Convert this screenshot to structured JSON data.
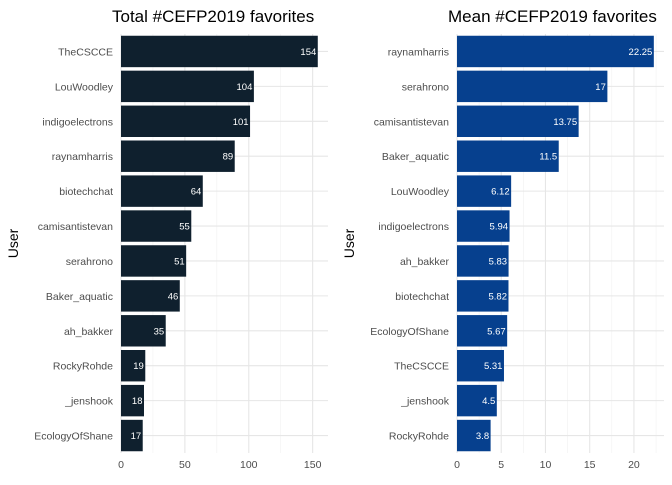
{
  "chart_data": [
    {
      "type": "bar",
      "orientation": "horizontal",
      "title": "Total #CEFP2019 favorites",
      "xlabel": "",
      "ylabel": "User",
      "categories": [
        "TheCSCCE",
        "LouWoodley",
        "indigoelectrons",
        "raynamharris",
        "biotechchat",
        "camisantistevan",
        "serahrono",
        "Baker_aquatic",
        "ah_bakker",
        "RockyRohde",
        "_jenshook",
        "EcologyOfShane"
      ],
      "values": [
        154,
        104,
        101,
        89,
        64,
        55,
        51,
        46,
        35,
        19,
        18,
        17
      ],
      "value_labels": [
        "154",
        "104",
        "101",
        "89",
        "64",
        "55",
        "51",
        "46",
        "35",
        "19",
        "18",
        "17"
      ],
      "xlim": [
        0,
        162
      ],
      "xticks": [
        0,
        50,
        100,
        150
      ],
      "xtick_labels": [
        "0",
        "50",
        "100",
        "150"
      ],
      "grid": true,
      "bar_color": "#0f202e"
    },
    {
      "type": "bar",
      "orientation": "horizontal",
      "title": "Mean #CEFP2019 favorites",
      "xlabel": "",
      "ylabel": "User",
      "categories": [
        "raynamharris",
        "serahrono",
        "camisantistevan",
        "Baker_aquatic",
        "LouWoodley",
        "indigoelectrons",
        "ah_bakker",
        "biotechchat",
        "EcologyOfShane",
        "TheCSCCE",
        "_jenshook",
        "RockyRohde"
      ],
      "values": [
        22.25,
        17,
        13.75,
        11.5,
        6.12,
        5.94,
        5.83,
        5.82,
        5.67,
        5.31,
        4.5,
        3.8
      ],
      "value_labels": [
        "22.25",
        "17",
        "13.75",
        "11.5",
        "6.12",
        "5.94",
        "5.83",
        "5.82",
        "5.67",
        "5.31",
        "4.5",
        "3.8"
      ],
      "xlim": [
        0,
        23.4
      ],
      "xticks": [
        0,
        5,
        10,
        15,
        20
      ],
      "xtick_labels": [
        "0",
        "5",
        "10",
        "15",
        "20"
      ],
      "grid": true,
      "bar_color": "#06408e"
    }
  ]
}
